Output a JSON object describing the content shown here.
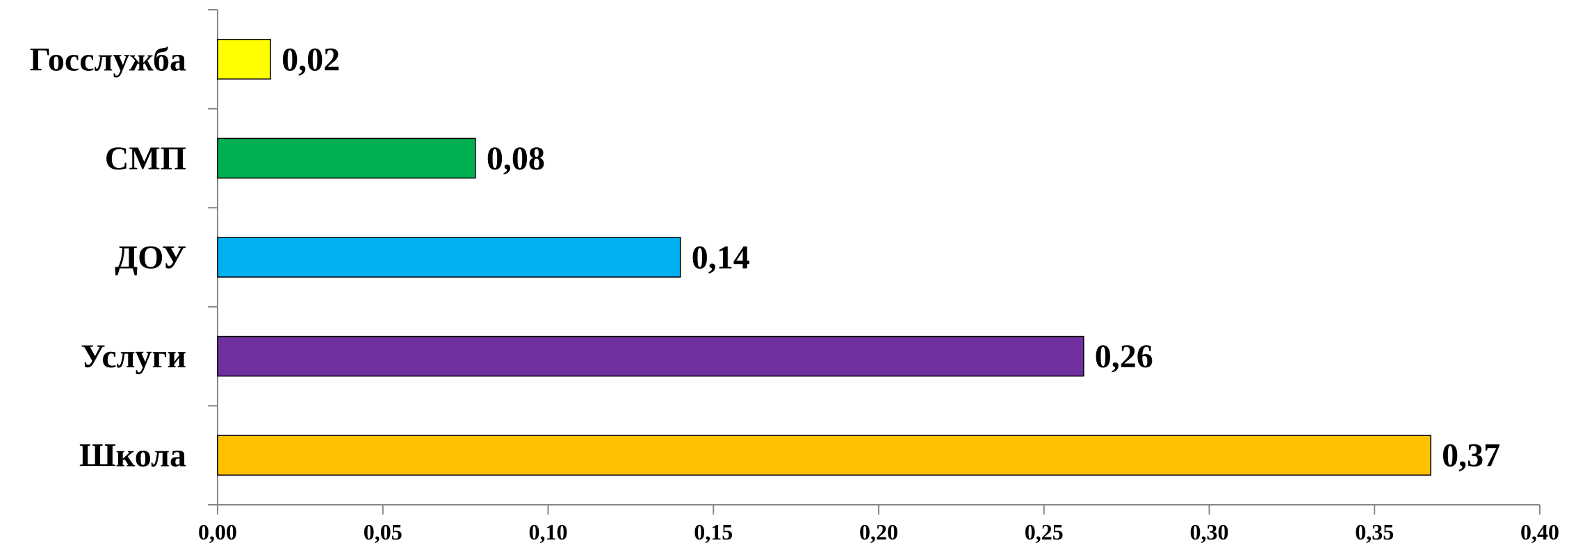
{
  "chart_data": {
    "type": "bar",
    "orientation": "horizontal",
    "categories": [
      "Госслужба",
      "СМП",
      "ДОУ",
      "Услуги",
      "Школа"
    ],
    "values": [
      0.016,
      0.078,
      0.14,
      0.262,
      0.367
    ],
    "data_labels": [
      "0,02",
      "0,08",
      "0,14",
      "0,26",
      "0,37"
    ],
    "colors": [
      "#FFFF00",
      "#00B050",
      "#00B0F0",
      "#7030A0",
      "#FFC000"
    ],
    "xlim": [
      0,
      0.4
    ],
    "x_ticks": [
      0,
      0.05,
      0.1,
      0.15,
      0.2,
      0.25,
      0.3,
      0.35,
      0.4
    ],
    "x_tick_labels": [
      "0,00",
      "0,05",
      "0,10",
      "0,15",
      "0,20",
      "0,25",
      "0,30",
      "0,35",
      "0,40"
    ],
    "title": "",
    "xlabel": "",
    "ylabel": "",
    "grid": false,
    "legend": "none"
  }
}
